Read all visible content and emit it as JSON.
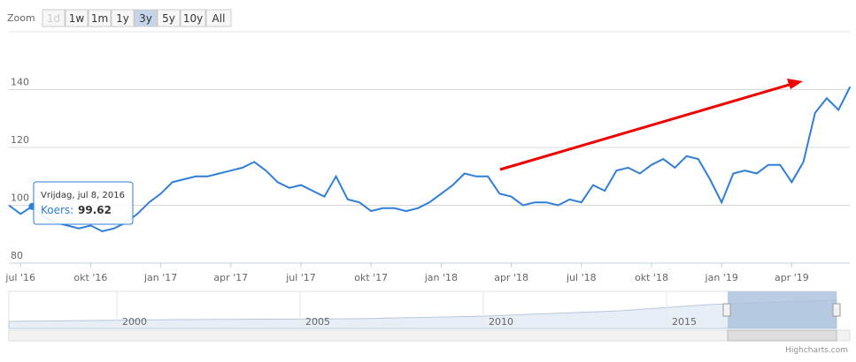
{
  "zoom": {
    "label": "Zoom",
    "buttons": [
      "1d",
      "1w",
      "1m",
      "1y",
      "3y",
      "5y",
      "10y",
      "All"
    ],
    "selected": 4,
    "disabled": 0
  },
  "chart_data": {
    "type": "line",
    "grid": true,
    "categories": [
      null,
      "jul '16",
      null,
      null,
      null,
      null,
      null,
      "okt '16",
      null,
      null,
      null,
      null,
      null,
      "jan '17",
      null,
      null,
      null,
      null,
      null,
      "apr '17",
      null,
      null,
      null,
      null,
      null,
      "jul '17",
      null,
      null,
      null,
      null,
      null,
      "okt '17",
      null,
      null,
      null,
      null,
      null,
      "jan '18",
      null,
      null,
      null,
      null,
      null,
      "apr '18",
      null,
      null,
      null,
      null,
      null,
      "jul '18",
      null,
      null,
      null,
      null,
      null,
      "okt '18",
      null,
      null,
      null,
      null,
      null,
      "jan '19",
      null,
      null,
      null,
      null,
      null,
      "apr '19",
      null,
      null,
      null,
      null,
      null
    ],
    "series": [
      {
        "name": "Koers",
        "color": "#2f7ed8",
        "values": [
          100,
          97,
          99.6,
          96,
          94,
          93,
          92,
          93,
          91,
          92,
          94,
          97,
          101,
          104,
          108,
          109,
          110,
          110,
          111,
          112,
          113,
          115,
          112,
          108,
          106,
          107,
          105,
          103,
          110,
          102,
          101,
          98,
          99,
          99,
          98,
          99,
          101,
          104,
          107,
          111,
          110,
          110,
          104,
          103,
          100,
          101,
          101,
          100,
          102,
          101,
          107,
          105,
          112,
          113,
          111,
          114,
          116,
          113,
          117,
          116,
          109,
          101,
          111,
          112,
          111,
          114,
          114,
          108,
          115,
          132,
          137,
          133,
          141
        ]
      }
    ],
    "ylim": [
      80,
      160
    ],
    "yticks": [
      80,
      100,
      120,
      140
    ]
  },
  "tooltip": {
    "date": "Vrijdag, jul 8, 2016",
    "label": "Koers:",
    "value": "99.62"
  },
  "navigator": {
    "labels": [
      "2000",
      "2005",
      "2010",
      "2015"
    ]
  },
  "credits": "Highcharts.com"
}
